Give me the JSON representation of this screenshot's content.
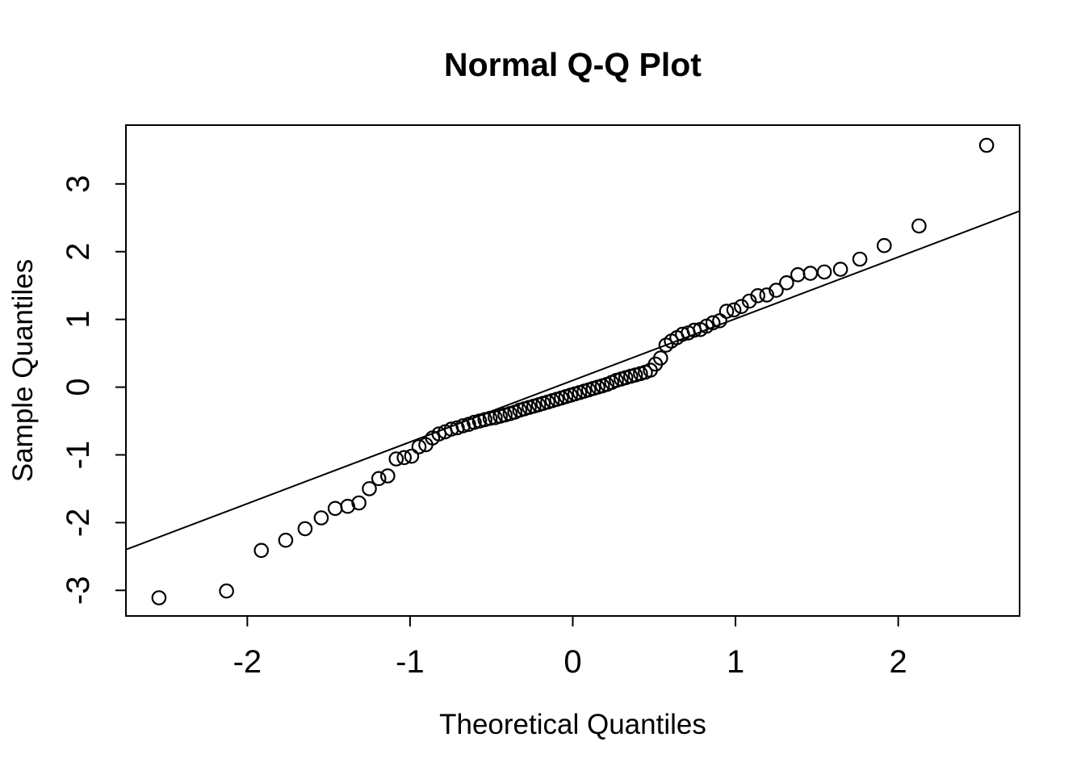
{
  "figure": {
    "background_color": "#ffffff",
    "foreground_color": "#000000"
  },
  "chart_data": {
    "type": "scatter",
    "title": "Normal Q-Q Plot",
    "xlabel": "Theoretical Quantiles",
    "ylabel": "Sample Quantiles",
    "grid": false,
    "legend": "none",
    "marker": "open-circle",
    "x_ticks": [
      -2,
      -1,
      0,
      1,
      2
    ],
    "y_ticks": [
      3,
      2,
      1,
      0,
      -1,
      -2,
      -3
    ],
    "xlim": [
      -2.746,
      2.746
    ],
    "ylim": [
      -3.378,
      3.868
    ],
    "reference_line": {
      "intercept": 0.1,
      "slope": 0.91,
      "x_start": -2.746,
      "x_end": 2.746
    },
    "points": [
      [
        -2.543,
        -3.11
      ],
      [
        -2.128,
        -3.01
      ],
      [
        -1.914,
        -2.41
      ],
      [
        -1.764,
        -2.26
      ],
      [
        -1.645,
        -2.09
      ],
      [
        -1.546,
        -1.93
      ],
      [
        -1.46,
        -1.79
      ],
      [
        -1.383,
        -1.76
      ],
      [
        -1.314,
        -1.71
      ],
      [
        -1.25,
        -1.5
      ],
      [
        -1.192,
        -1.35
      ],
      [
        -1.137,
        -1.31
      ],
      [
        -1.085,
        -1.06
      ],
      [
        -1.036,
        -1.04
      ],
      [
        -0.99,
        -1.02
      ],
      [
        -0.945,
        -0.88
      ],
      [
        -0.903,
        -0.85
      ],
      [
        -0.862,
        -0.75
      ],
      [
        -0.822,
        -0.69
      ],
      [
        -0.784,
        -0.66
      ],
      [
        -0.746,
        -0.62
      ],
      [
        -0.71,
        -0.6
      ],
      [
        -0.674,
        -0.57
      ],
      [
        -0.64,
        -0.55
      ],
      [
        -0.606,
        -0.52
      ],
      [
        -0.573,
        -0.5
      ],
      [
        -0.54,
        -0.48
      ],
      [
        -0.508,
        -0.46
      ],
      [
        -0.477,
        -0.45
      ],
      [
        -0.446,
        -0.43
      ],
      [
        -0.416,
        -0.41
      ],
      [
        -0.385,
        -0.39
      ],
      [
        -0.356,
        -0.37
      ],
      [
        -0.326,
        -0.34
      ],
      [
        -0.297,
        -0.32
      ],
      [
        -0.268,
        -0.3
      ],
      [
        -0.239,
        -0.28
      ],
      [
        -0.21,
        -0.26
      ],
      [
        -0.182,
        -0.24
      ],
      [
        -0.154,
        -0.22
      ],
      [
        -0.126,
        -0.2
      ],
      [
        -0.098,
        -0.18
      ],
      [
        -0.07,
        -0.16
      ],
      [
        -0.042,
        -0.14
      ],
      [
        -0.014,
        -0.12
      ],
      [
        0.014,
        -0.1
      ],
      [
        0.042,
        -0.08
      ],
      [
        0.07,
        -0.06
      ],
      [
        0.098,
        -0.04
      ],
      [
        0.126,
        -0.02
      ],
      [
        0.154,
        0.0
      ],
      [
        0.182,
        0.02
      ],
      [
        0.21,
        0.04
      ],
      [
        0.239,
        0.07
      ],
      [
        0.268,
        0.1
      ],
      [
        0.297,
        0.12
      ],
      [
        0.326,
        0.14
      ],
      [
        0.356,
        0.16
      ],
      [
        0.385,
        0.18
      ],
      [
        0.416,
        0.2
      ],
      [
        0.446,
        0.22
      ],
      [
        0.477,
        0.25
      ],
      [
        0.508,
        0.34
      ],
      [
        0.54,
        0.43
      ],
      [
        0.573,
        0.62
      ],
      [
        0.606,
        0.68
      ],
      [
        0.64,
        0.73
      ],
      [
        0.674,
        0.78
      ],
      [
        0.71,
        0.8
      ],
      [
        0.746,
        0.84
      ],
      [
        0.784,
        0.85
      ],
      [
        0.822,
        0.9
      ],
      [
        0.862,
        0.95
      ],
      [
        0.903,
        0.98
      ],
      [
        0.945,
        1.12
      ],
      [
        0.99,
        1.14
      ],
      [
        1.036,
        1.19
      ],
      [
        1.085,
        1.27
      ],
      [
        1.137,
        1.35
      ],
      [
        1.192,
        1.36
      ],
      [
        1.25,
        1.43
      ],
      [
        1.314,
        1.54
      ],
      [
        1.383,
        1.66
      ],
      [
        1.46,
        1.68
      ],
      [
        1.546,
        1.7
      ],
      [
        1.645,
        1.74
      ],
      [
        1.764,
        1.89
      ],
      [
        1.914,
        2.09
      ],
      [
        2.128,
        2.38
      ],
      [
        2.543,
        3.57
      ]
    ]
  }
}
